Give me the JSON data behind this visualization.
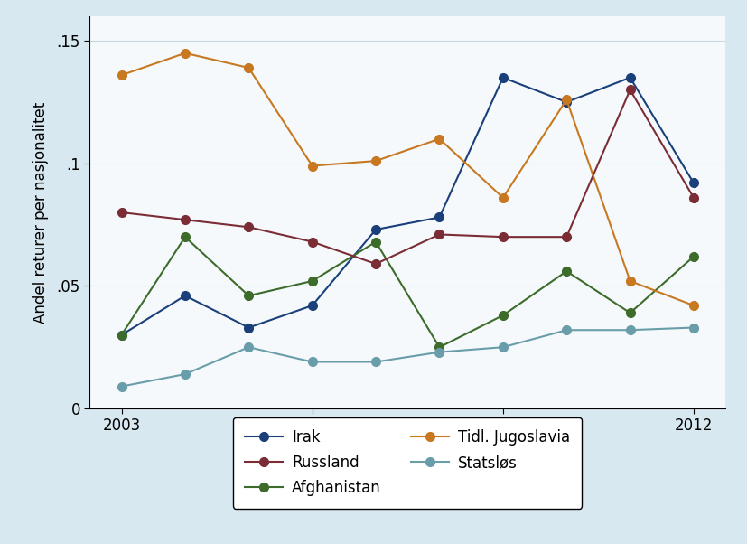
{
  "years": [
    2003,
    2004,
    2005,
    2006,
    2007,
    2008,
    2009,
    2010,
    2011,
    2012
  ],
  "series_order": [
    "Irak",
    "Afghanistan",
    "Statsløs",
    "Russland",
    "Tidl. Jugoslavia"
  ],
  "series": {
    "Irak": {
      "values": [
        0.03,
        0.046,
        0.033,
        0.042,
        0.073,
        0.078,
        0.135,
        0.125,
        0.135,
        0.092
      ],
      "color": "#1a3f7a",
      "marker": "o"
    },
    "Russland": {
      "values": [
        0.08,
        0.077,
        0.074,
        0.068,
        0.059,
        0.071,
        0.07,
        0.07,
        0.13,
        0.086
      ],
      "color": "#7b2d35",
      "marker": "o"
    },
    "Afghanistan": {
      "values": [
        0.03,
        0.07,
        0.046,
        0.052,
        0.068,
        0.025,
        0.038,
        0.056,
        0.039,
        0.062
      ],
      "color": "#3d6b2a",
      "marker": "o"
    },
    "Tidl. Jugoslavia": {
      "values": [
        0.136,
        0.145,
        0.139,
        0.099,
        0.101,
        0.11,
        0.086,
        0.126,
        0.052,
        0.042
      ],
      "color": "#c87820",
      "marker": "o"
    },
    "Statsløs": {
      "values": [
        0.009,
        0.014,
        0.025,
        0.019,
        0.019,
        0.023,
        0.025,
        0.032,
        0.032,
        0.033
      ],
      "color": "#6a9daa",
      "marker": "o"
    }
  },
  "legend_col1": [
    "Irak",
    "Afghanistan",
    "Statsløs"
  ],
  "legend_col2": [
    "Russland",
    "Tidl. Jugoslavia"
  ],
  "ylabel": "Andel returer per nasjonalitet",
  "xlim": [
    2002.5,
    2012.5
  ],
  "ylim": [
    0,
    0.16
  ],
  "yticks": [
    0,
    0.05,
    0.1,
    0.15
  ],
  "ytick_labels": [
    "0",
    ".05",
    ".1",
    ".15"
  ],
  "xticks": [
    2003,
    2006,
    2009,
    2012
  ],
  "outer_bg": "#d8e8f0",
  "plot_bg": "#f5f9fc",
  "grid_color": "#c8d8e0",
  "line_width": 1.5,
  "marker_size": 7,
  "font_size": 12
}
